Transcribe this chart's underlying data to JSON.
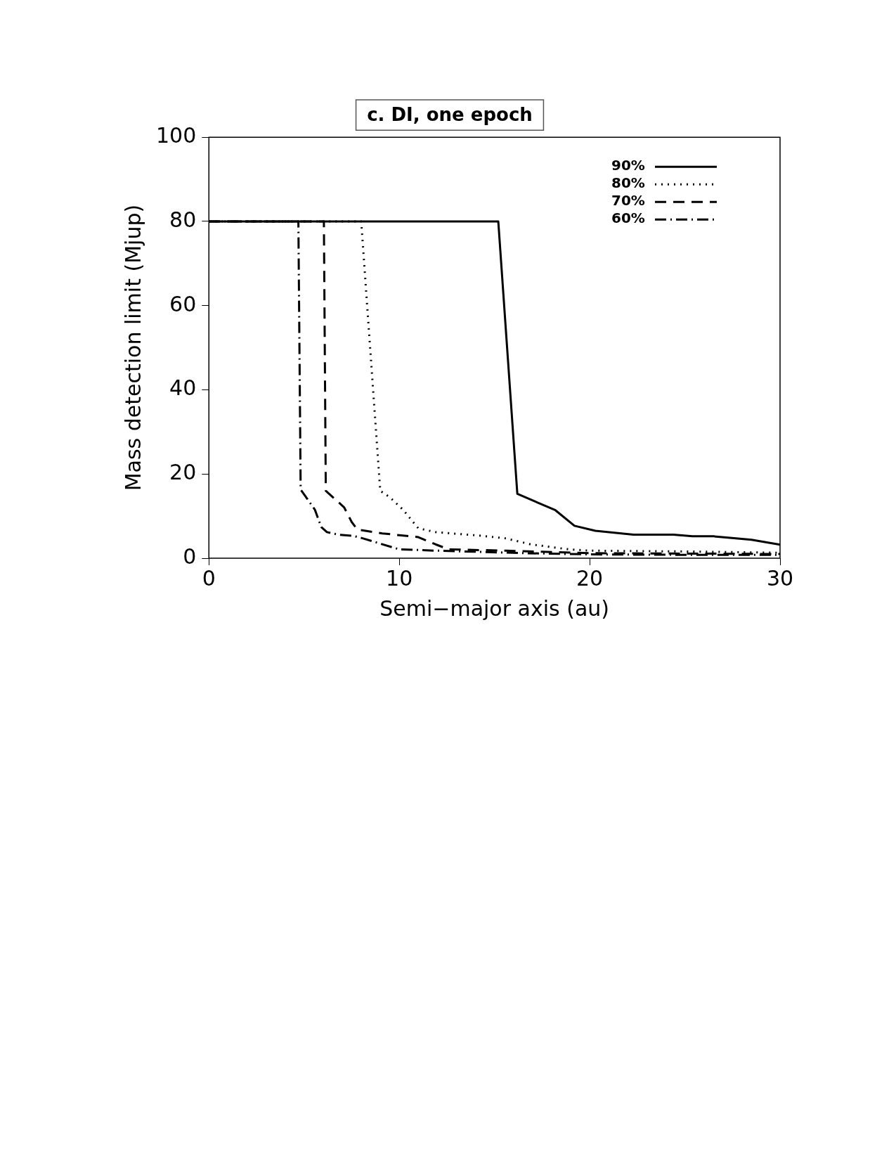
{
  "chart_data": {
    "type": "line",
    "title": "c. DI, one epoch",
    "xlabel": "Semi−major axis (au)",
    "ylabel": "Mass detection limit (Mjup)",
    "xlim": [
      0,
      30
    ],
    "xticks": [
      0,
      10,
      20,
      30
    ],
    "ylim": [
      0,
      100
    ],
    "yticks": [
      0,
      20,
      40,
      60,
      80,
      100
    ],
    "grid": false,
    "legend": "top right",
    "marker": "none",
    "series": [
      {
        "name": "90%",
        "color": "#000000",
        "line_style": "solid",
        "x": [
          0,
          15.2,
          16.2,
          18.2,
          19.2,
          20.3,
          22.3,
          24.4,
          25.4,
          26.5,
          28.5,
          29.9,
          30
        ],
        "values": [
          80,
          80,
          15.3,
          11.4,
          7.7,
          6.5,
          5.6,
          5.6,
          5.2,
          5.2,
          4.4,
          3.3,
          3.2
        ]
      },
      {
        "name": "80%",
        "color": "#000000",
        "line_style": "dotted",
        "x": [
          0,
          8.0,
          9.0,
          9.5,
          10.2,
          11.0,
          11.9,
          14.4,
          15.6,
          16.9,
          17.9,
          18.9,
          20,
          25,
          30
        ],
        "values": [
          80,
          80,
          16,
          14.5,
          11.5,
          7.1,
          6.2,
          5.3,
          4.7,
          3.3,
          2.7,
          2.1,
          1.8,
          1.6,
          1.3
        ]
      },
      {
        "name": "70%",
        "color": "#000000",
        "line_style": "dashed",
        "x": [
          0,
          6.04,
          6.14,
          7.1,
          7.5,
          7.8,
          9.1,
          11.0,
          11.9,
          12.6,
          15.6,
          20,
          25,
          30
        ],
        "values": [
          80,
          80,
          16,
          12.1,
          8.6,
          6.8,
          5.9,
          5.0,
          3.3,
          2.1,
          1.8,
          1.2,
          1.1,
          1.0
        ]
      },
      {
        "name": "60%",
        "color": "#000000",
        "line_style": "dashdot",
        "x": [
          0,
          4.7,
          4.82,
          5.57,
          5.9,
          6.2,
          6.8,
          7.6,
          8.1,
          10.0,
          11.9,
          16.6,
          20,
          25,
          30
        ],
        "values": [
          80,
          80,
          16.3,
          11.5,
          7.4,
          6.2,
          5.6,
          5.3,
          4.7,
          2.1,
          1.8,
          1.2,
          0.9,
          0.8,
          0.8
        ]
      }
    ]
  }
}
